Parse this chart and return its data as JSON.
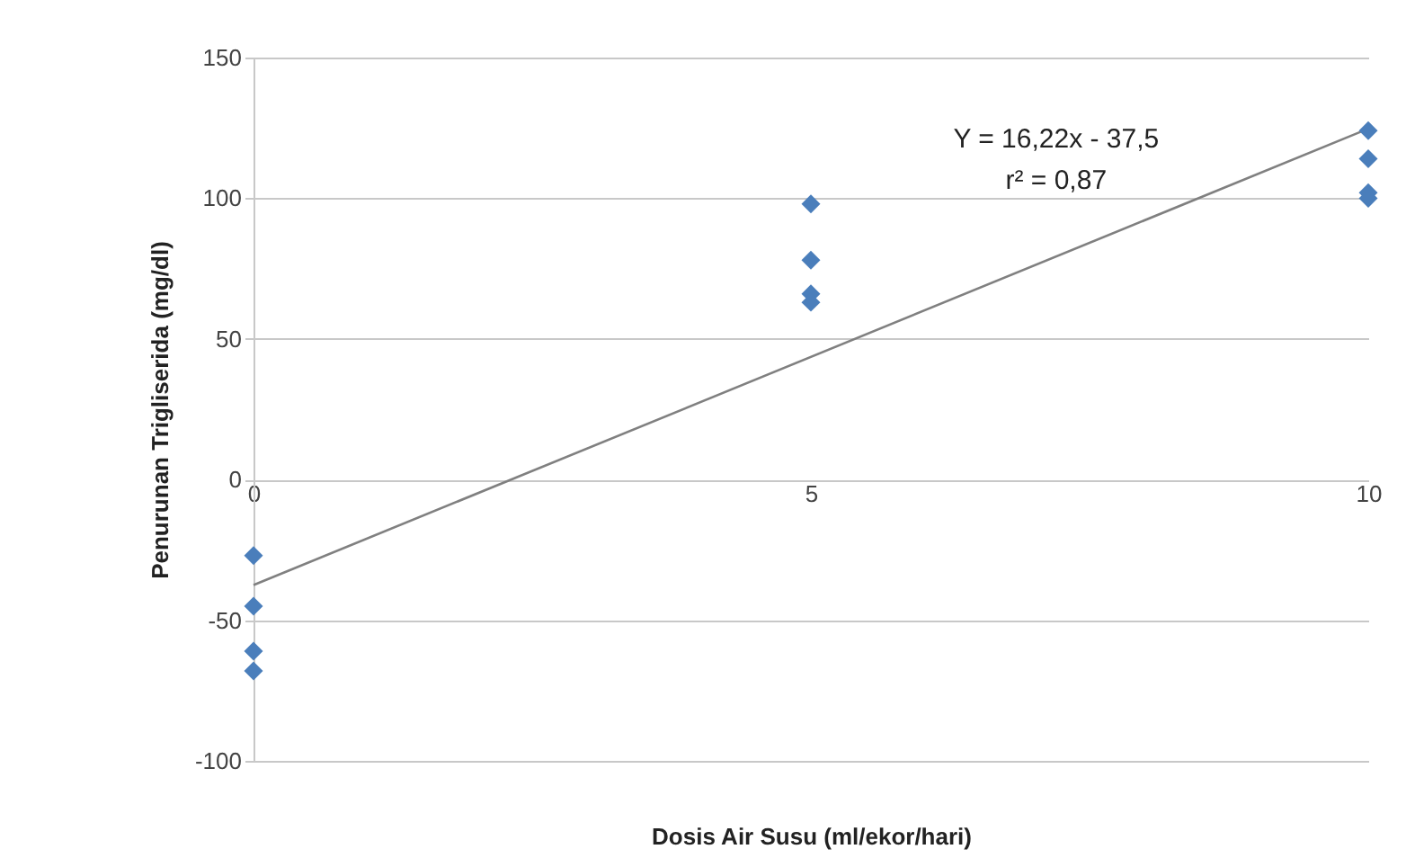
{
  "chart_data": {
    "type": "scatter",
    "xlabel": "Dosis Air Susu (ml/ekor/hari)",
    "ylabel": "Penurunan Trigliserida (mg/dl)",
    "xlim": [
      0,
      10
    ],
    "xticks": [
      0,
      5,
      10
    ],
    "ylim": [
      -100,
      150
    ],
    "yticks": [
      -100,
      -50,
      0,
      50,
      100,
      150
    ],
    "grid": "y",
    "marker": "diamond",
    "annotations": [
      "Y = 16,22x - 37,5",
      "r² = 0,87"
    ],
    "series": [
      {
        "color": "#4a7ebb",
        "x": [
          0,
          0,
          0,
          0,
          5,
          5,
          5,
          5,
          10,
          10,
          10,
          10
        ],
        "values": [
          -27,
          -45,
          -61,
          -68,
          98,
          78,
          66,
          63,
          124,
          114,
          102,
          100
        ]
      },
      {
        "type": "line",
        "marker": "none",
        "color": "#808080",
        "x": [
          0,
          10
        ],
        "values": [
          -37.5,
          124.7
        ]
      }
    ]
  }
}
